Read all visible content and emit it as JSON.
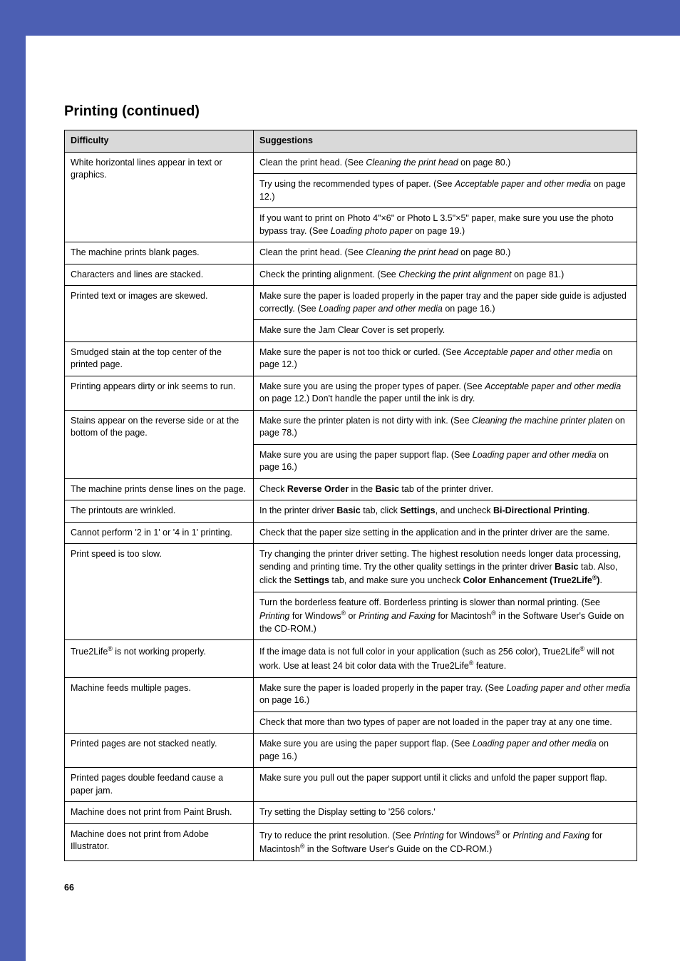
{
  "heading": "Printing (continued)",
  "headers": {
    "difficulty": "Difficulty",
    "suggestions": "Suggestions"
  },
  "page_number": "66",
  "rows": [
    {
      "difficulty_html": "White horizontal lines appear in text or graphics.",
      "suggestions": [
        "Clean the print head. (See <span class=\"italic\">Cleaning the print head</span> on page 80.)",
        "Try using the recommended types of paper. (See <span class=\"italic\">Acceptable paper and other media</span> on page 12.)",
        "If you want to print on Photo 4\"×6\" or Photo L 3.5\"×5\" paper, make sure you use the photo bypass tray. (See <span class=\"italic\">Loading photo paper</span> on page 19.)"
      ]
    },
    {
      "difficulty_html": "The machine prints blank pages.",
      "suggestions": [
        "Clean the print head. (See <span class=\"italic\">Cleaning the print head</span> on page 80.)"
      ]
    },
    {
      "difficulty_html": "Characters and lines are stacked.",
      "suggestions": [
        "Check the printing alignment. (See <span class=\"italic\">Checking the print alignment</span> on page 81.)"
      ]
    },
    {
      "difficulty_html": "Printed text or images are skewed.",
      "suggestions": [
        "Make sure the paper is loaded properly in the paper tray and the paper side guide is adjusted correctly. (See <span class=\"italic\">Loading paper and other media</span> on page 16.)",
        "Make sure the Jam Clear Cover is set properly."
      ]
    },
    {
      "difficulty_html": "Smudged stain at the top center of the printed page.",
      "suggestions": [
        "Make sure the paper is not too thick or curled. (See <span class=\"italic\">Acceptable paper and other media</span> on page 12.)"
      ]
    },
    {
      "difficulty_html": "Printing appears dirty or ink seems to run.",
      "suggestions": [
        "Make sure you are using the proper types of paper. (See <span class=\"italic\">Acceptable paper and other media</span> on page 12.) Don't handle the paper until the ink is dry."
      ]
    },
    {
      "difficulty_html": "Stains appear on the reverse side or at the bottom of the page.",
      "suggestions": [
        "Make sure the printer platen is not dirty with ink. (See <span class=\"italic\">Cleaning the machine printer platen</span> on page 78.)",
        "Make sure you are using the paper support flap. (See <span class=\"italic\">Loading paper and other media</span> on page 16.)"
      ]
    },
    {
      "difficulty_html": "The machine prints dense lines on the page.",
      "suggestions": [
        "Check <span class=\"bold\">Reverse Order</span> in the <span class=\"bold\">Basic</span> tab of the printer driver."
      ]
    },
    {
      "difficulty_html": "The printouts are wrinkled.",
      "suggestions": [
        "In the printer driver <span class=\"bold\">Basic</span> tab, click <span class=\"bold\">Settings</span>, and uncheck <span class=\"bold\">Bi-Directional Printing</span>."
      ]
    },
    {
      "difficulty_html": "Cannot perform '2 in 1' or '4 in 1' printing.",
      "suggestions": [
        "Check that the paper size setting in the application and in the printer driver are the same."
      ]
    },
    {
      "difficulty_html": "Print speed is too slow.",
      "suggestions": [
        "Try changing the printer driver setting. The highest resolution needs longer data processing, sending and printing time. Try the other quality settings in the printer driver <span class=\"bold\">Basic</span> tab. Also, click the <span class=\"bold\">Settings</span> tab, and make sure you uncheck <span class=\"bold\">Color Enhancement (True2Life<sup>®</sup>)</span>.",
        "Turn the borderless feature off. Borderless printing is slower than normal printing. (See <span class=\"italic\">Printing</span> for Windows<sup>®</sup> or <span class=\"italic\">Printing and Faxing</span> for Macintosh<sup>®</sup> in the Software User's Guide on the CD-ROM.)"
      ]
    },
    {
      "difficulty_html": "True2Life<sup>®</sup> is not working properly.",
      "suggestions": [
        "If the image data is not full color in your application (such as 256 color), True2Life<sup>®</sup> will not work. Use at least 24 bit color data with the True2Life<sup>®</sup> feature."
      ]
    },
    {
      "difficulty_html": "Machine feeds multiple pages.",
      "suggestions": [
        "Make sure the paper is loaded properly in the paper tray. (See <span class=\"italic\">Loading paper and other media</span> on page 16.)",
        "Check that more than two types of paper are not loaded in the paper tray at any one time."
      ]
    },
    {
      "difficulty_html": "Printed pages are not stacked neatly.",
      "suggestions": [
        "Make sure you are using the paper support flap. (See <span class=\"italic\">Loading paper and other media</span> on page 16.)"
      ]
    },
    {
      "difficulty_html": "Printed pages double feedand cause a paper jam.",
      "suggestions": [
        "Make sure you pull out the paper support until it clicks and unfold the paper support flap."
      ]
    },
    {
      "difficulty_html": "Machine does not print from Paint Brush.",
      "suggestions": [
        "Try setting the Display setting to '256 colors.'"
      ]
    },
    {
      "difficulty_html": "Machine does not print from Adobe Illustrator.",
      "suggestions": [
        "Try to reduce the print resolution. (See <span class=\"italic\">Printing</span> for Windows<sup>®</sup> or <span class=\"italic\">Printing and Faxing</span> for Macintosh<sup>®</sup> in the Software User's Guide on the CD-ROM.)"
      ]
    }
  ]
}
